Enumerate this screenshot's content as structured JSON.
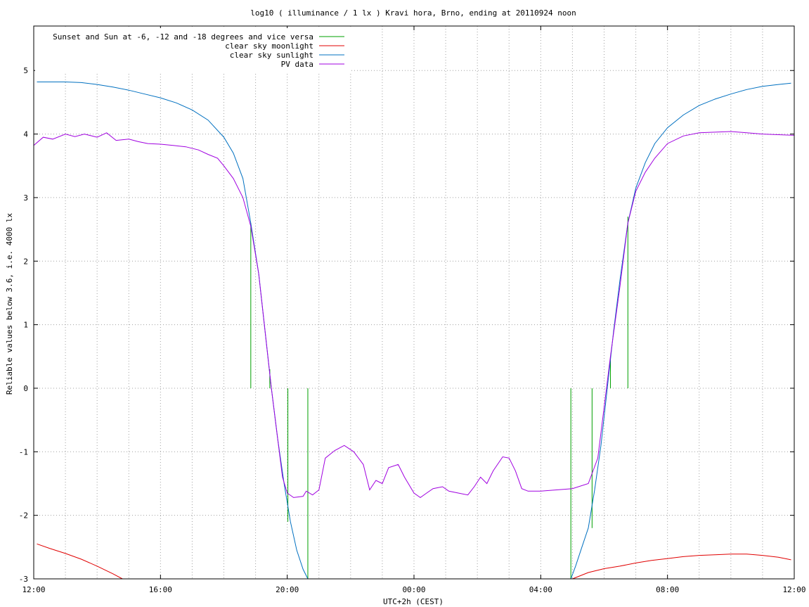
{
  "chart_data": {
    "type": "line",
    "title": "log10 ( illuminance / 1 lx ) Kravi hora, Brno, ending at 20110924 noon",
    "xlabel": "UTC+2h (CEST)",
    "ylabel": "Reliable values below 3.6, i.e. 4000 lx",
    "xlim": [
      12,
      36
    ],
    "ylim": [
      -3,
      5.7
    ],
    "grid": true,
    "legend_position": "top-left",
    "x_ticks": [
      {
        "v": 12,
        "label": "12:00"
      },
      {
        "v": 16,
        "label": "16:00"
      },
      {
        "v": 20,
        "label": "20:00"
      },
      {
        "v": 24,
        "label": "00:00"
      },
      {
        "v": 28,
        "label": "04:00"
      },
      {
        "v": 32,
        "label": "08:00"
      },
      {
        "v": 36,
        "label": "12:00"
      }
    ],
    "y_ticks": [
      {
        "v": -3,
        "label": "-3"
      },
      {
        "v": -2,
        "label": "-2"
      },
      {
        "v": -1,
        "label": "-1"
      },
      {
        "v": 0,
        "label": "0"
      },
      {
        "v": 1,
        "label": "1"
      },
      {
        "v": 2,
        "label": "2"
      },
      {
        "v": 3,
        "label": "3"
      },
      {
        "v": 4,
        "label": "4"
      },
      {
        "v": 5,
        "label": "5"
      }
    ],
    "series": [
      {
        "name": "Sunset and Sun at -6, -12 and -18 degrees and vice versa",
        "color": "#00a000",
        "kind": "vlines",
        "segments": [
          {
            "x": 18.85,
            "y0": 0,
            "y1": 2.6
          },
          {
            "x": 19.45,
            "y0": 0,
            "y1": 0.3
          },
          {
            "x": 20.02,
            "y0": -2.1,
            "y1": 0
          },
          {
            "x": 20.65,
            "y0": -3,
            "y1": 0
          },
          {
            "x": 28.95,
            "y0": -3,
            "y1": 0
          },
          {
            "x": 29.62,
            "y0": -2.2,
            "y1": 0
          },
          {
            "x": 30.2,
            "y0": 0,
            "y1": 0.5
          },
          {
            "x": 30.75,
            "y0": 0,
            "y1": 2.7
          }
        ]
      },
      {
        "name": "clear sky moonlight",
        "color": "#e00000",
        "points": [
          [
            12.1,
            -2.45
          ],
          [
            12.5,
            -2.52
          ],
          [
            13,
            -2.6
          ],
          [
            13.5,
            -2.69
          ],
          [
            14,
            -2.8
          ],
          [
            14.5,
            -2.92
          ],
          [
            14.8,
            -3.0
          ],
          [
            29.0,
            -3.0
          ],
          [
            29.5,
            -2.9
          ],
          [
            30,
            -2.84
          ],
          [
            30.5,
            -2.8
          ],
          [
            31,
            -2.75
          ],
          [
            31.5,
            -2.71
          ],
          [
            32,
            -2.68
          ],
          [
            32.5,
            -2.65
          ],
          [
            33,
            -2.63
          ],
          [
            33.5,
            -2.62
          ],
          [
            34,
            -2.61
          ],
          [
            34.5,
            -2.61
          ],
          [
            35,
            -2.63
          ],
          [
            35.5,
            -2.66
          ],
          [
            35.9,
            -2.7
          ]
        ]
      },
      {
        "name": "clear sky sunlight",
        "color": "#0070c0",
        "points": [
          [
            12.1,
            4.82
          ],
          [
            13,
            4.82
          ],
          [
            13.5,
            4.81
          ],
          [
            14,
            4.78
          ],
          [
            14.5,
            4.74
          ],
          [
            15,
            4.69
          ],
          [
            15.5,
            4.63
          ],
          [
            16,
            4.57
          ],
          [
            16.5,
            4.49
          ],
          [
            17,
            4.38
          ],
          [
            17.5,
            4.22
          ],
          [
            18,
            3.95
          ],
          [
            18.3,
            3.7
          ],
          [
            18.6,
            3.3
          ],
          [
            18.85,
            2.6
          ],
          [
            19.1,
            1.8
          ],
          [
            19.3,
            0.9
          ],
          [
            19.5,
            0
          ],
          [
            19.7,
            -0.8
          ],
          [
            19.9,
            -1.5
          ],
          [
            20.1,
            -2.1
          ],
          [
            20.3,
            -2.55
          ],
          [
            20.5,
            -2.85
          ],
          [
            20.65,
            -3.0
          ],
          [
            28.95,
            -3.0
          ],
          [
            29.1,
            -2.8
          ],
          [
            29.3,
            -2.5
          ],
          [
            29.5,
            -2.2
          ],
          [
            29.7,
            -1.6
          ],
          [
            29.9,
            -0.9
          ],
          [
            30.1,
            0
          ],
          [
            30.3,
            0.9
          ],
          [
            30.5,
            1.7
          ],
          [
            30.75,
            2.6
          ],
          [
            31,
            3.15
          ],
          [
            31.3,
            3.55
          ],
          [
            31.6,
            3.85
          ],
          [
            32,
            4.1
          ],
          [
            32.5,
            4.3
          ],
          [
            33,
            4.45
          ],
          [
            33.5,
            4.55
          ],
          [
            34,
            4.63
          ],
          [
            34.5,
            4.7
          ],
          [
            35,
            4.75
          ],
          [
            35.5,
            4.78
          ],
          [
            35.9,
            4.8
          ]
        ]
      },
      {
        "name": "PV data",
        "color": "#a000e0",
        "points": [
          [
            12.0,
            3.82
          ],
          [
            12.3,
            3.95
          ],
          [
            12.6,
            3.92
          ],
          [
            13.0,
            4.0
          ],
          [
            13.3,
            3.96
          ],
          [
            13.6,
            4.0
          ],
          [
            14.0,
            3.95
          ],
          [
            14.3,
            4.02
          ],
          [
            14.6,
            3.9
          ],
          [
            15.0,
            3.92
          ],
          [
            15.3,
            3.88
          ],
          [
            15.6,
            3.85
          ],
          [
            16.0,
            3.84
          ],
          [
            16.4,
            3.82
          ],
          [
            16.8,
            3.8
          ],
          [
            17.2,
            3.75
          ],
          [
            17.5,
            3.68
          ],
          [
            17.8,
            3.62
          ],
          [
            18.0,
            3.5
          ],
          [
            18.3,
            3.3
          ],
          [
            18.6,
            3.0
          ],
          [
            18.85,
            2.55
          ],
          [
            19.1,
            1.8
          ],
          [
            19.3,
            0.9
          ],
          [
            19.5,
            0
          ],
          [
            19.7,
            -0.8
          ],
          [
            19.85,
            -1.4
          ],
          [
            20.0,
            -1.65
          ],
          [
            20.2,
            -1.72
          ],
          [
            20.5,
            -1.7
          ],
          [
            20.6,
            -1.62
          ],
          [
            20.8,
            -1.68
          ],
          [
            21.0,
            -1.6
          ],
          [
            21.2,
            -1.1
          ],
          [
            21.5,
            -0.98
          ],
          [
            21.8,
            -0.9
          ],
          [
            22.1,
            -1.0
          ],
          [
            22.4,
            -1.2
          ],
          [
            22.6,
            -1.6
          ],
          [
            22.8,
            -1.45
          ],
          [
            23.0,
            -1.5
          ],
          [
            23.2,
            -1.25
          ],
          [
            23.5,
            -1.2
          ],
          [
            23.7,
            -1.4
          ],
          [
            24.0,
            -1.65
          ],
          [
            24.2,
            -1.72
          ],
          [
            24.4,
            -1.65
          ],
          [
            24.6,
            -1.58
          ],
          [
            24.9,
            -1.55
          ],
          [
            25.1,
            -1.62
          ],
          [
            25.4,
            -1.65
          ],
          [
            25.7,
            -1.68
          ],
          [
            25.9,
            -1.55
          ],
          [
            26.1,
            -1.4
          ],
          [
            26.3,
            -1.5
          ],
          [
            26.5,
            -1.3
          ],
          [
            26.8,
            -1.08
          ],
          [
            27.0,
            -1.1
          ],
          [
            27.2,
            -1.3
          ],
          [
            27.4,
            -1.58
          ],
          [
            27.6,
            -1.62
          ],
          [
            28.0,
            -1.62
          ],
          [
            28.5,
            -1.6
          ],
          [
            29.0,
            -1.58
          ],
          [
            29.5,
            -1.5
          ],
          [
            29.8,
            -1.1
          ],
          [
            30.0,
            -0.3
          ],
          [
            30.2,
            0.5
          ],
          [
            30.5,
            1.6
          ],
          [
            30.75,
            2.6
          ],
          [
            31.0,
            3.1
          ],
          [
            31.3,
            3.4
          ],
          [
            31.6,
            3.62
          ],
          [
            32.0,
            3.85
          ],
          [
            32.5,
            3.97
          ],
          [
            33.0,
            4.02
          ],
          [
            33.5,
            4.03
          ],
          [
            34.0,
            4.04
          ],
          [
            34.5,
            4.02
          ],
          [
            35.0,
            4.0
          ],
          [
            35.5,
            3.99
          ],
          [
            36.0,
            3.98
          ]
        ]
      }
    ]
  }
}
